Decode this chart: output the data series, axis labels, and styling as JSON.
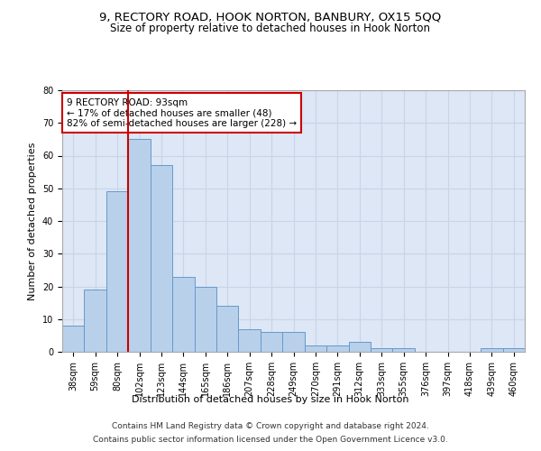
{
  "title_line1": "9, RECTORY ROAD, HOOK NORTON, BANBURY, OX15 5QQ",
  "title_line2": "Size of property relative to detached houses in Hook Norton",
  "xlabel": "Distribution of detached houses by size in Hook Norton",
  "ylabel": "Number of detached properties",
  "categories": [
    "38sqm",
    "59sqm",
    "80sqm",
    "102sqm",
    "123sqm",
    "144sqm",
    "165sqm",
    "186sqm",
    "207sqm",
    "228sqm",
    "249sqm",
    "270sqm",
    "291sqm",
    "312sqm",
    "333sqm",
    "355sqm",
    "376sqm",
    "397sqm",
    "418sqm",
    "439sqm",
    "460sqm"
  ],
  "values": [
    8,
    19,
    49,
    65,
    57,
    23,
    20,
    14,
    7,
    6,
    6,
    2,
    2,
    3,
    1,
    1,
    0,
    0,
    0,
    1,
    1
  ],
  "bar_color": "#b8d0ea",
  "bar_edge_color": "#6699cc",
  "vline_position": 2.5,
  "vline_color": "#cc0000",
  "annotation_text": "9 RECTORY ROAD: 93sqm\n← 17% of detached houses are smaller (48)\n82% of semi-detached houses are larger (228) →",
  "annotation_box_color": "#ffffff",
  "annotation_box_edge": "#cc0000",
  "ylim": [
    0,
    80
  ],
  "yticks": [
    0,
    10,
    20,
    30,
    40,
    50,
    60,
    70,
    80
  ],
  "grid_color": "#c8d4e8",
  "background_color": "#dde7f5",
  "footer_line1": "Contains HM Land Registry data © Crown copyright and database right 2024.",
  "footer_line2": "Contains public sector information licensed under the Open Government Licence v3.0.",
  "title_fontsize": 9.5,
  "subtitle_fontsize": 8.5,
  "axis_label_fontsize": 8,
  "tick_fontsize": 7,
  "annotation_fontsize": 7.5
}
